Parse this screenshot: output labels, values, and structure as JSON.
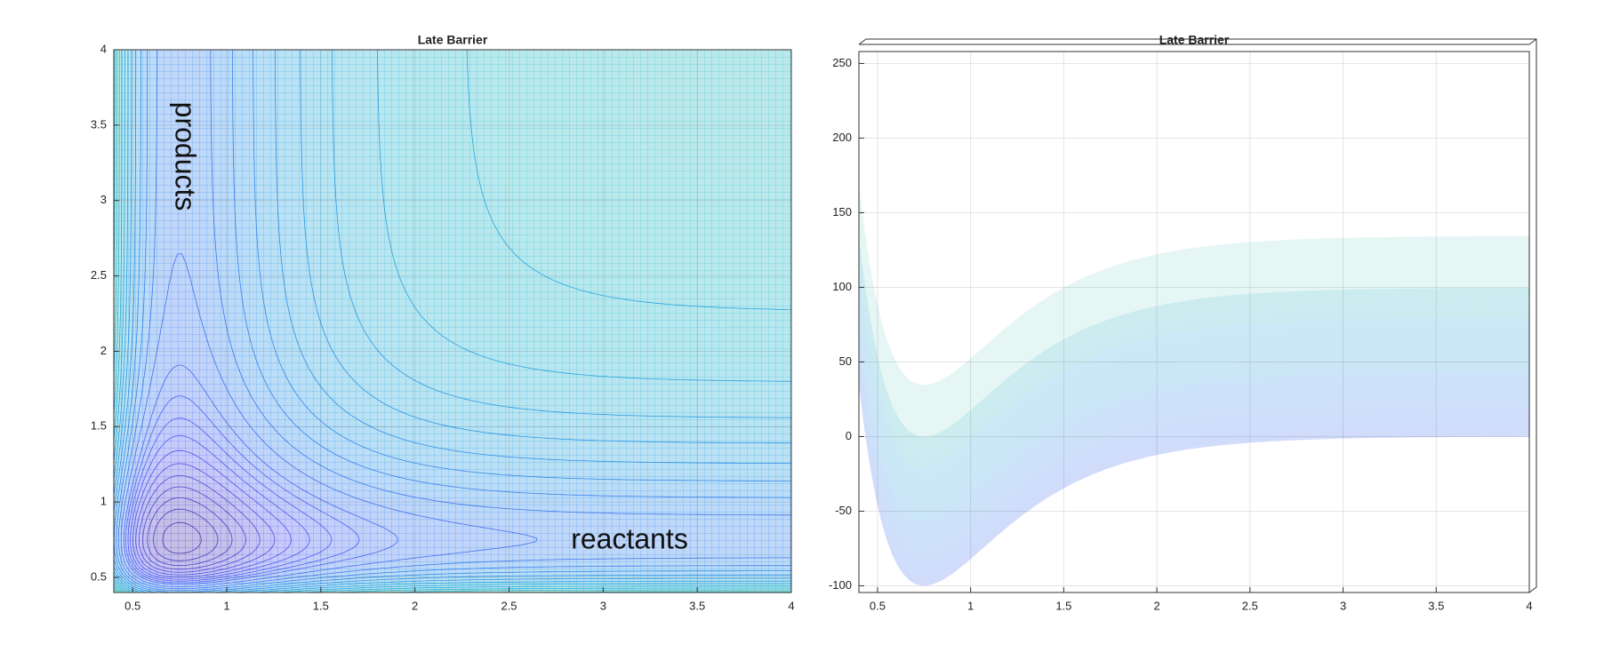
{
  "chart_data": [
    {
      "type": "contour",
      "title": "Late Barrier",
      "xlim": [
        0.4,
        4
      ],
      "ylim": [
        0.4,
        4
      ],
      "xticks": [
        0.5,
        1,
        1.5,
        2,
        2.5,
        3,
        3.5,
        4
      ],
      "yticks": [
        0.5,
        1,
        1.5,
        2,
        2.5,
        3,
        3.5,
        4
      ],
      "annotations": [
        "products",
        "reactants"
      ],
      "grid": true
    },
    {
      "type": "surface",
      "title": "Late Barrier",
      "xlim": [
        0.4,
        4
      ],
      "ylim": [
        -104.5,
        258
      ],
      "xticks": [
        0.5,
        1,
        1.5,
        2,
        2.5,
        3,
        3.5,
        4
      ],
      "yticks": [
        -100,
        -50,
        0,
        50,
        100,
        150,
        200,
        250
      ],
      "grid": true
    }
  ]
}
